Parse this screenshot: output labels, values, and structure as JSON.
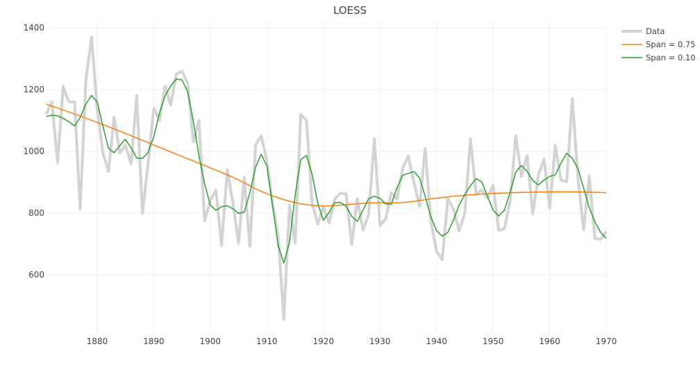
{
  "chart_data": {
    "type": "line",
    "title": "LOESS",
    "xlabel": "",
    "ylabel": "",
    "xlim": [
      1871,
      1970
    ],
    "ylim": [
      411,
      1418
    ],
    "grid": true,
    "legend_position": "top-right",
    "x_ticks": [
      "1880",
      "1890",
      "1900",
      "1910",
      "1920",
      "1930",
      "1940",
      "1950",
      "1960",
      "1970"
    ],
    "y_ticks": [
      "600",
      "800",
      "1000",
      "1200",
      "1400"
    ],
    "x_start": 1871,
    "series": [
      {
        "name": "Data",
        "color": "#d3d3d3",
        "kind": "raw",
        "values": [
          1120,
          1160,
          963,
          1210,
          1160,
          1160,
          813,
          1230,
          1370,
          1140,
          995,
          935,
          1110,
          994,
          1020,
          960,
          1180,
          799,
          958,
          1140,
          1100,
          1210,
          1150,
          1250,
          1260,
          1220,
          1030,
          1100,
          774,
          840,
          874,
          694,
          940,
          833,
          701,
          916,
          692,
          1020,
          1050,
          969,
          831,
          726,
          456,
          824,
          702,
          1120,
          1100,
          832,
          764,
          821,
          768,
          845,
          864,
          862,
          698,
          845,
          744,
          796,
          1040,
          759,
          781,
          865,
          845,
          944,
          984,
          897,
          822,
          1010,
          771,
          676,
          649,
          846,
          812,
          742,
          801,
          1040,
          860,
          874,
          848,
          890,
          744,
          749,
          838,
          1050,
          918,
          986,
          797,
          923,
          975,
          815,
          1020,
          906,
          901,
          1170,
          912,
          746,
          919,
          718,
          714,
          740
        ]
      },
      {
        "name": "Span = 0.75",
        "color": "#ff7f0e",
        "kind": "loess",
        "span": 0.75
      },
      {
        "name": "Span = 0.10",
        "color": "#2ca02c",
        "kind": "loess",
        "span": 0.1
      }
    ]
  }
}
